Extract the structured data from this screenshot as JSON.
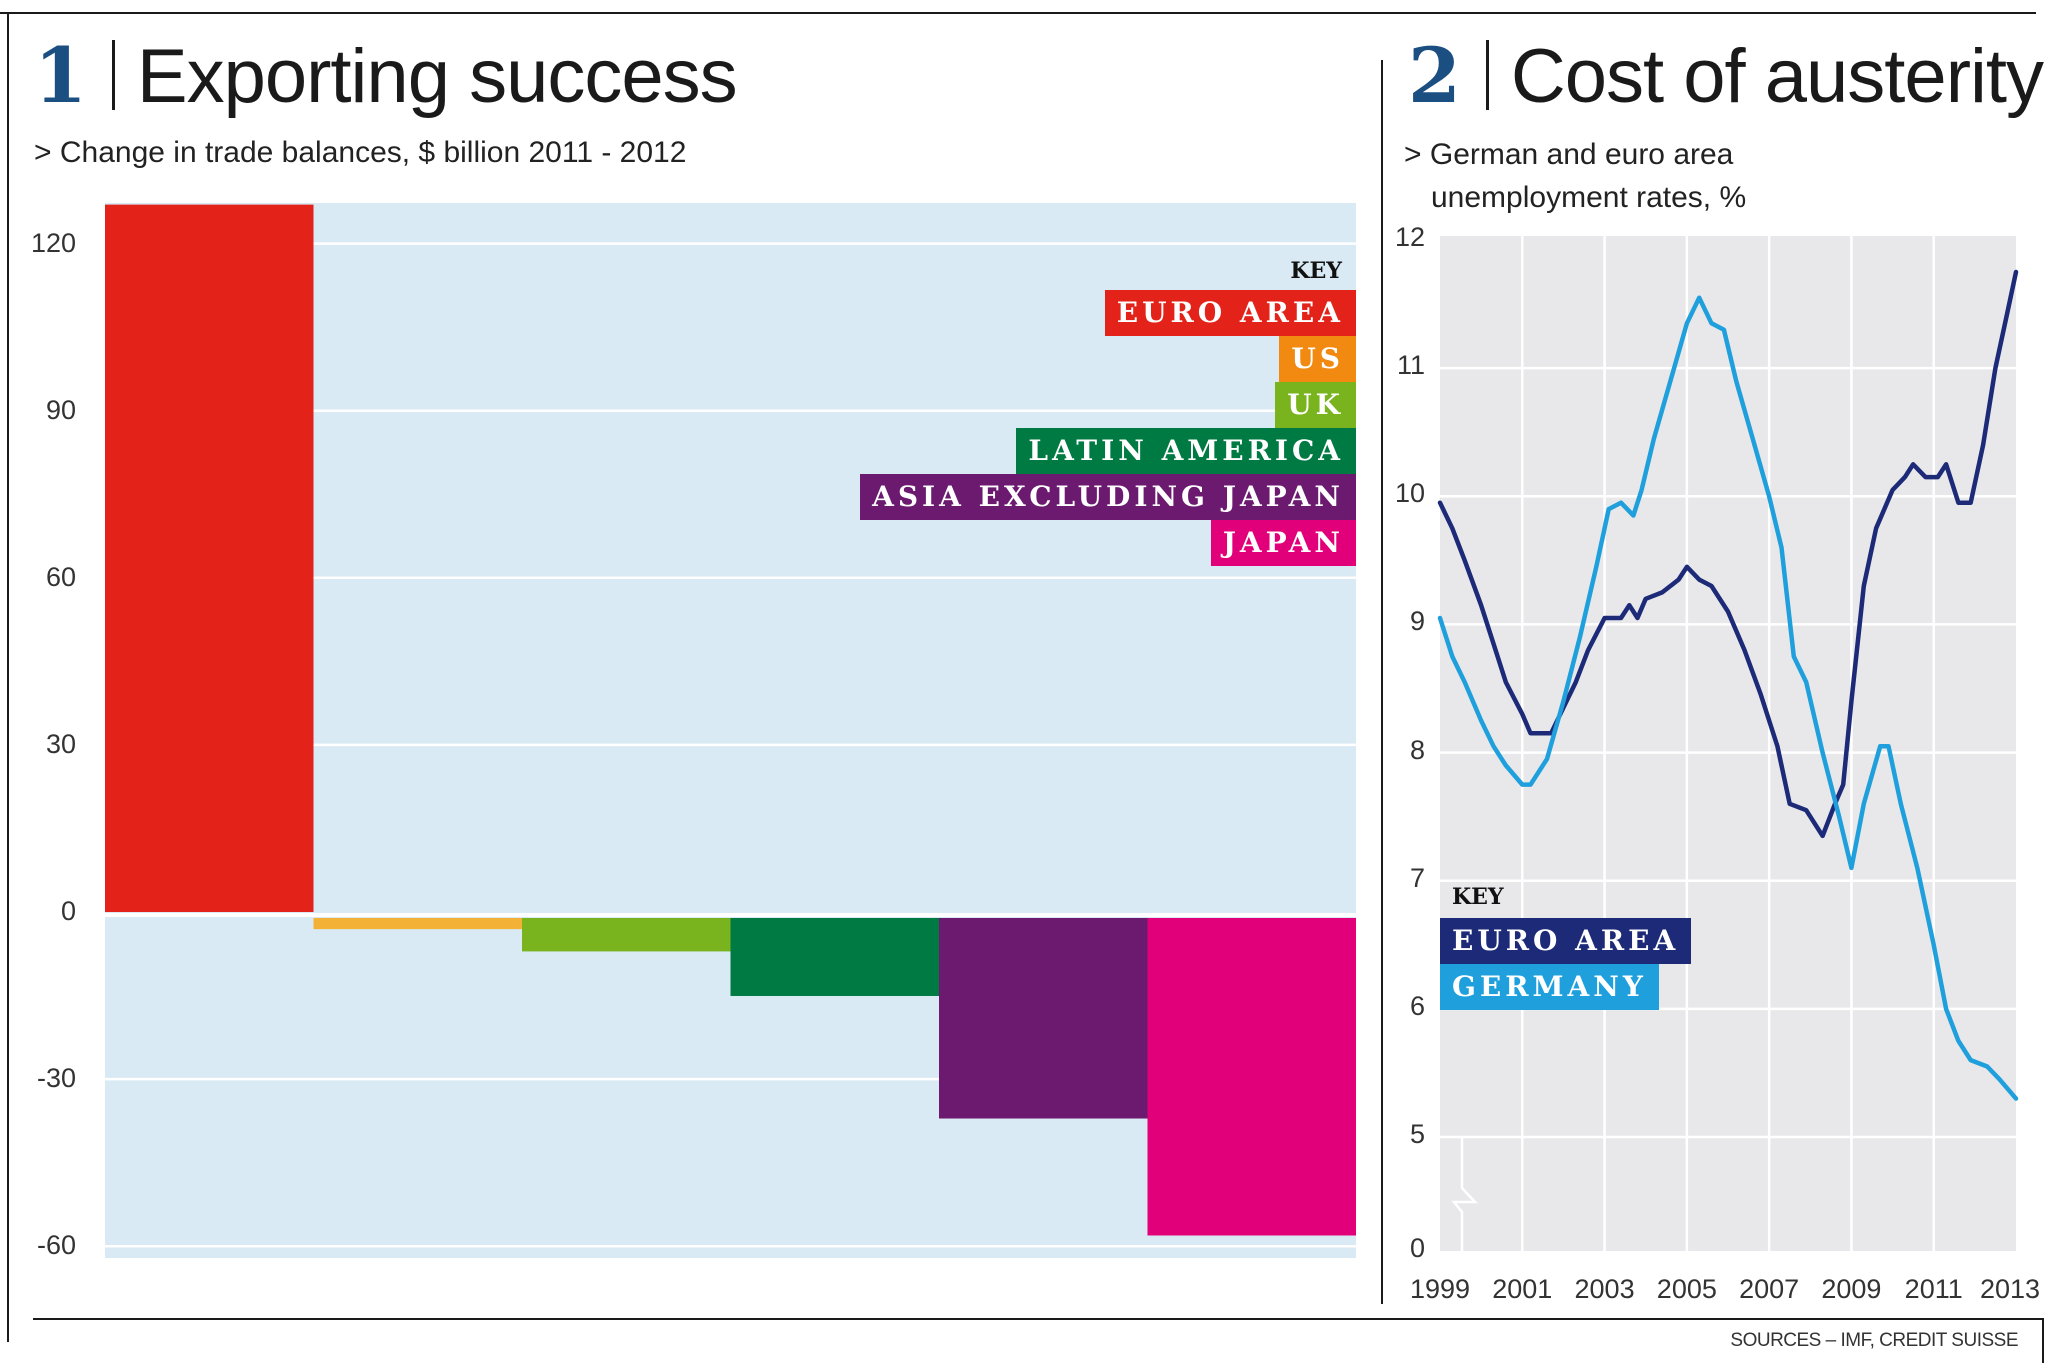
{
  "figure": {
    "sources": "SOURCES – IMF, CREDIT SUISSE"
  },
  "chart_data": [
    {
      "type": "bar",
      "number": "1",
      "title": "Exporting success",
      "subtitle": "> Change in trade balances, $ billion 2011 - 2012",
      "xlabel": "",
      "ylabel": "$ billion",
      "ylim": [
        -62,
        128
      ],
      "yticks": [
        "120",
        "90",
        "60",
        "30",
        "0",
        "-30",
        "-60"
      ],
      "ytick_values": [
        120,
        90,
        60,
        30,
        0,
        -30,
        -60
      ],
      "grid": true,
      "background": "#d9eaf4",
      "categories": [
        "EURO AREA",
        "US",
        "UK",
        "LATIN AMERICA",
        "ASIA EXCLUDING JAPAN",
        "JAPAN"
      ],
      "values": [
        127,
        -2,
        -6,
        -14,
        -36,
        -57
      ],
      "colors": [
        "#e32319",
        "#f28a12",
        "#79b41f",
        "#007a43",
        "#6b1a70",
        "#e2007a"
      ],
      "bar_colors": [
        "#e32319",
        "#f3b236",
        "#79b41f",
        "#007a43",
        "#6b1a70",
        "#e2007a"
      ],
      "legend": {
        "title": "KEY",
        "placement": "top-right"
      }
    },
    {
      "type": "line",
      "number": "2",
      "title": "Cost of austerity",
      "subtitle_lines": [
        "> German and euro area",
        "unemployment rates, %"
      ],
      "xlabel": "",
      "ylabel": "%",
      "xlim": [
        1999,
        2013
      ],
      "ylim_display": [
        5,
        12
      ],
      "axis_break": "between 0 and 5",
      "yticks": [
        "12",
        "11",
        "10",
        "9",
        "8",
        "7",
        "6",
        "5",
        "0"
      ],
      "ytick_values": [
        12,
        11,
        10,
        9,
        8,
        7,
        6,
        5,
        0
      ],
      "xticks": [
        "1999",
        "2001",
        "2003",
        "2005",
        "2007",
        "2009",
        "2011",
        "2013"
      ],
      "xtick_values": [
        1999,
        2001,
        2003,
        2005,
        2007,
        2009,
        2011,
        2013
      ],
      "grid": true,
      "background": "#e8e8ea",
      "legend": {
        "title": "KEY",
        "placement": "bottom-left"
      },
      "series": [
        {
          "name": "EURO AREA",
          "color": "#1c2a78",
          "x": [
            1999.0,
            1999.3,
            1999.6,
            2000.0,
            2000.3,
            2000.6,
            2001.0,
            2001.2,
            2001.7,
            2002.0,
            2002.3,
            2002.6,
            2003.0,
            2003.4,
            2003.6,
            2003.8,
            2004.0,
            2004.4,
            2004.8,
            2005.0,
            2005.3,
            2005.6,
            2006.0,
            2006.4,
            2006.8,
            2007.2,
            2007.5,
            2007.9,
            2008.3,
            2008.6,
            2008.8,
            2009.0,
            2009.3,
            2009.6,
            2010.0,
            2010.3,
            2010.5,
            2010.8,
            2011.1,
            2011.3,
            2011.6,
            2011.9,
            2012.2,
            2012.5,
            2012.8,
            2013.0
          ],
          "y": [
            9.95,
            9.75,
            9.5,
            9.15,
            8.85,
            8.55,
            8.3,
            8.15,
            8.15,
            8.35,
            8.55,
            8.8,
            9.05,
            9.05,
            9.15,
            9.05,
            9.2,
            9.25,
            9.35,
            9.45,
            9.35,
            9.3,
            9.1,
            8.8,
            8.45,
            8.05,
            7.6,
            7.55,
            7.35,
            7.6,
            7.75,
            8.4,
            9.3,
            9.75,
            10.05,
            10.15,
            10.25,
            10.15,
            10.15,
            10.25,
            9.95,
            9.95,
            10.4,
            11.0,
            11.45,
            11.75
          ]
        },
        {
          "name": "GERMANY",
          "color": "#1fa0dc",
          "x": [
            1999.0,
            1999.3,
            1999.6,
            2000.0,
            2000.3,
            2000.6,
            2001.0,
            2001.2,
            2001.6,
            2002.0,
            2002.4,
            2002.8,
            2003.1,
            2003.4,
            2003.7,
            2003.9,
            2004.2,
            2004.6,
            2005.0,
            2005.3,
            2005.6,
            2005.9,
            2006.2,
            2006.6,
            2007.0,
            2007.3,
            2007.6,
            2007.9,
            2008.3,
            2008.7,
            2009.0,
            2009.3,
            2009.7,
            2009.9,
            2010.2,
            2010.6,
            2011.0,
            2011.3,
            2011.6,
            2011.9,
            2012.3,
            2012.6,
            2013.0
          ],
          "y": [
            9.05,
            8.75,
            8.55,
            8.25,
            8.05,
            7.9,
            7.75,
            7.75,
            7.95,
            8.4,
            8.9,
            9.45,
            9.9,
            9.95,
            9.85,
            10.05,
            10.45,
            10.9,
            11.35,
            11.55,
            11.35,
            11.3,
            10.9,
            10.45,
            10.0,
            9.6,
            8.75,
            8.55,
            8.0,
            7.5,
            7.1,
            7.6,
            8.05,
            8.05,
            7.6,
            7.1,
            6.5,
            6.0,
            5.75,
            5.6,
            5.55,
            5.45,
            5.3
          ]
        }
      ]
    }
  ]
}
